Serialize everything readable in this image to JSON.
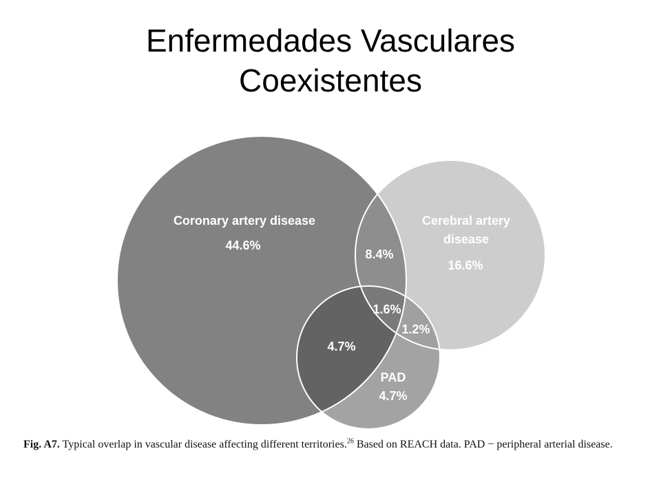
{
  "slide": {
    "title_line1": "Enfermedades Vasculares",
    "title_line2": "Coexistentes"
  },
  "venn": {
    "sets": [
      {
        "id": "coronary",
        "label": "Coronary artery disease",
        "value": "44.6%",
        "color": "#828282"
      },
      {
        "id": "cerebral",
        "label_line1": "Cerebral artery",
        "label_line2": "disease",
        "value": "16.6%",
        "color": "#cdcdcd"
      },
      {
        "id": "pad",
        "label": "PAD",
        "value": "4.7%",
        "color": "#a3a3a3"
      }
    ],
    "overlaps": {
      "coronary_cerebral": "8.4%",
      "all_three": "1.6%",
      "cerebral_pad": "1.2%",
      "coronary_pad": "4.7%"
    },
    "colors": {
      "coronary_cerebral": "#8e8e8e",
      "coronary_pad": "#636363",
      "cerebral_pad": "#a0a0a0",
      "all_three": "#7a7a7a",
      "outline": "#ffffff"
    }
  },
  "caption": {
    "fig": "Fig. A7.",
    "text": " Typical overlap in vascular disease affecting different territories.",
    "ref": "26",
    "text2": " Based on REACH data. PAD − peripheral arterial disease."
  }
}
